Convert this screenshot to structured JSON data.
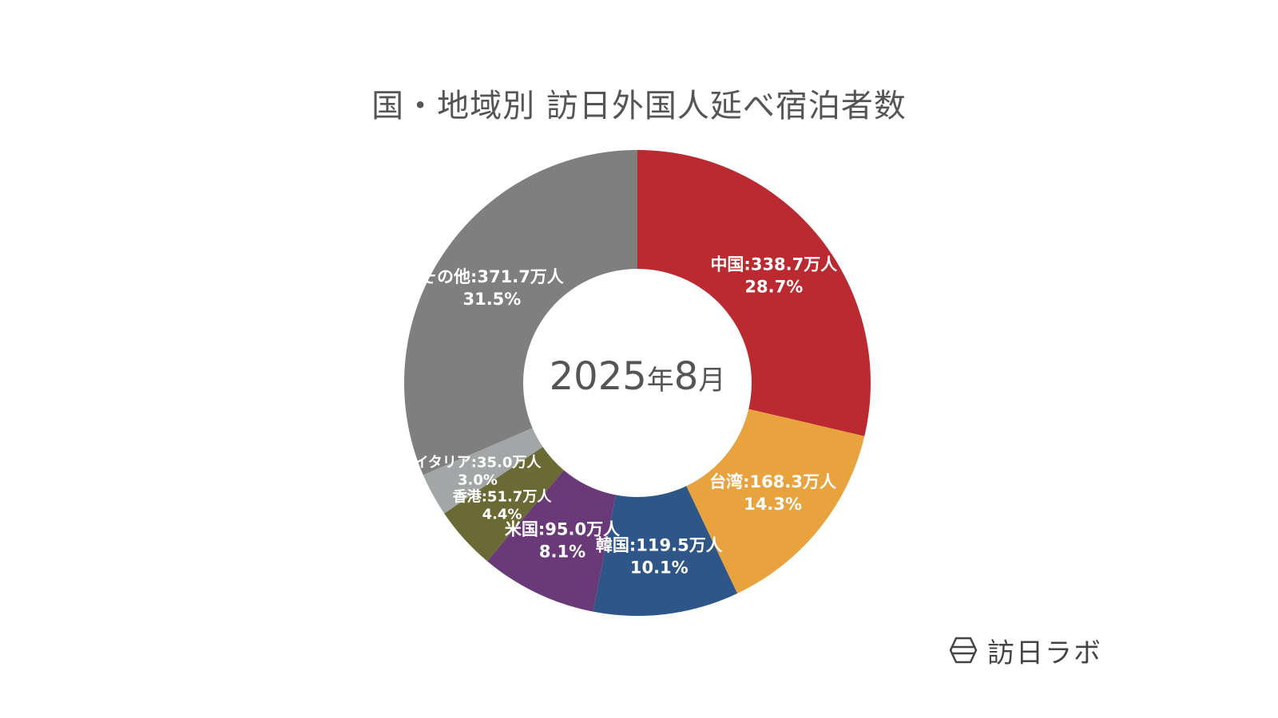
{
  "chart_data": {
    "type": "pie",
    "title": "国・地域別 訪日外国人延べ宿泊者数",
    "center_label": {
      "year": "2025",
      "year_unit": "年",
      "month": "8",
      "month_unit": "月"
    },
    "slices": [
      {
        "name": "中国",
        "value": "338.7万人",
        "share": "28.7%",
        "percent": 28.7,
        "color": "#bb2a30"
      },
      {
        "name": "台湾",
        "value": "168.3万人",
        "share": "14.3%",
        "percent": 14.3,
        "color": "#e8a23e"
      },
      {
        "name": "韓国",
        "value": "119.5万人",
        "share": "10.1%",
        "percent": 10.1,
        "color": "#2e5688"
      },
      {
        "name": "米国",
        "value": "95.0万人",
        "share": "8.1%",
        "percent": 8.1,
        "color": "#6a3a78"
      },
      {
        "name": "香港",
        "value": "51.7万人",
        "share": "4.4%",
        "percent": 4.4,
        "color": "#6a6a34"
      },
      {
        "name": "イタリア",
        "value": "35.0万人",
        "share": "3.0%",
        "percent": 3.0,
        "color": "#a3a6a6"
      },
      {
        "name": "その他",
        "value": "371.7万人",
        "share": "31.5%",
        "percent": 31.5,
        "color": "#7e7f7e"
      }
    ]
  },
  "brand": {
    "name": "訪日ラボ",
    "icon": "hexagon-logo-icon"
  }
}
